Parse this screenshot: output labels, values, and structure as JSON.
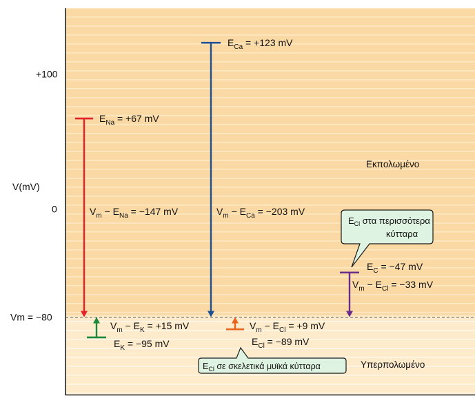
{
  "axis": {
    "title": "V(mV)",
    "ticks": [
      {
        "label": "+100",
        "value": 100
      },
      {
        "label": "0",
        "value": 0
      },
      {
        "label": "Vm = −80",
        "value": -80
      }
    ],
    "ylim": [
      -132,
      148
    ]
  },
  "regions": {
    "depolarized_label": "Εκπολωμένο",
    "hyperpolarized_label": "Υπερπολωμένο"
  },
  "resting_potential": -80,
  "ions": [
    {
      "id": "na",
      "sub": "Na",
      "potential": 67,
      "potential_label": " = +67 mV",
      "drive_label": " = −147 mV",
      "color": "#e4202b"
    },
    {
      "id": "ca",
      "sub": "Ca",
      "potential": 123,
      "potential_label": " = +123 mV",
      "drive_label": " = −203 mV",
      "color": "#1c4f93"
    },
    {
      "id": "k",
      "sub": "K",
      "potential": -95,
      "potential_label": " = −95 mV",
      "drive_label": " =  +15 mV",
      "color": "#1a8a3a"
    },
    {
      "id": "cl_muscle",
      "sub": "Cl",
      "potential": -89,
      "potential_label": " = −89 mV",
      "drive_label": " =  +9 mV",
      "color": "#e8641e"
    },
    {
      "id": "cl_most",
      "sub": "C",
      "drive_sub": "Cl",
      "potential": -47,
      "potential_label": " = −47 mV",
      "drive_label": " = −33 mV",
      "color": "#6a2c8c"
    }
  ],
  "callouts": {
    "most_cells": {
      "sub": "Cl",
      "line1": " στα περισσότερα",
      "line2": "κύτταρα"
    },
    "skeletal_muscle": {
      "sub": "Cl",
      "text": " σε σκελετικά μυϊκά κύτταρα"
    }
  },
  "colors": {
    "depol_bg": "#fbd9a4",
    "depol_line": "#fde9c4",
    "hyper_bg": "#fdebcc",
    "hyper_line": "#fef6e6",
    "callout_bg": "#dff3e2",
    "callout_border": "#1a1a1a",
    "text": "#111111"
  }
}
